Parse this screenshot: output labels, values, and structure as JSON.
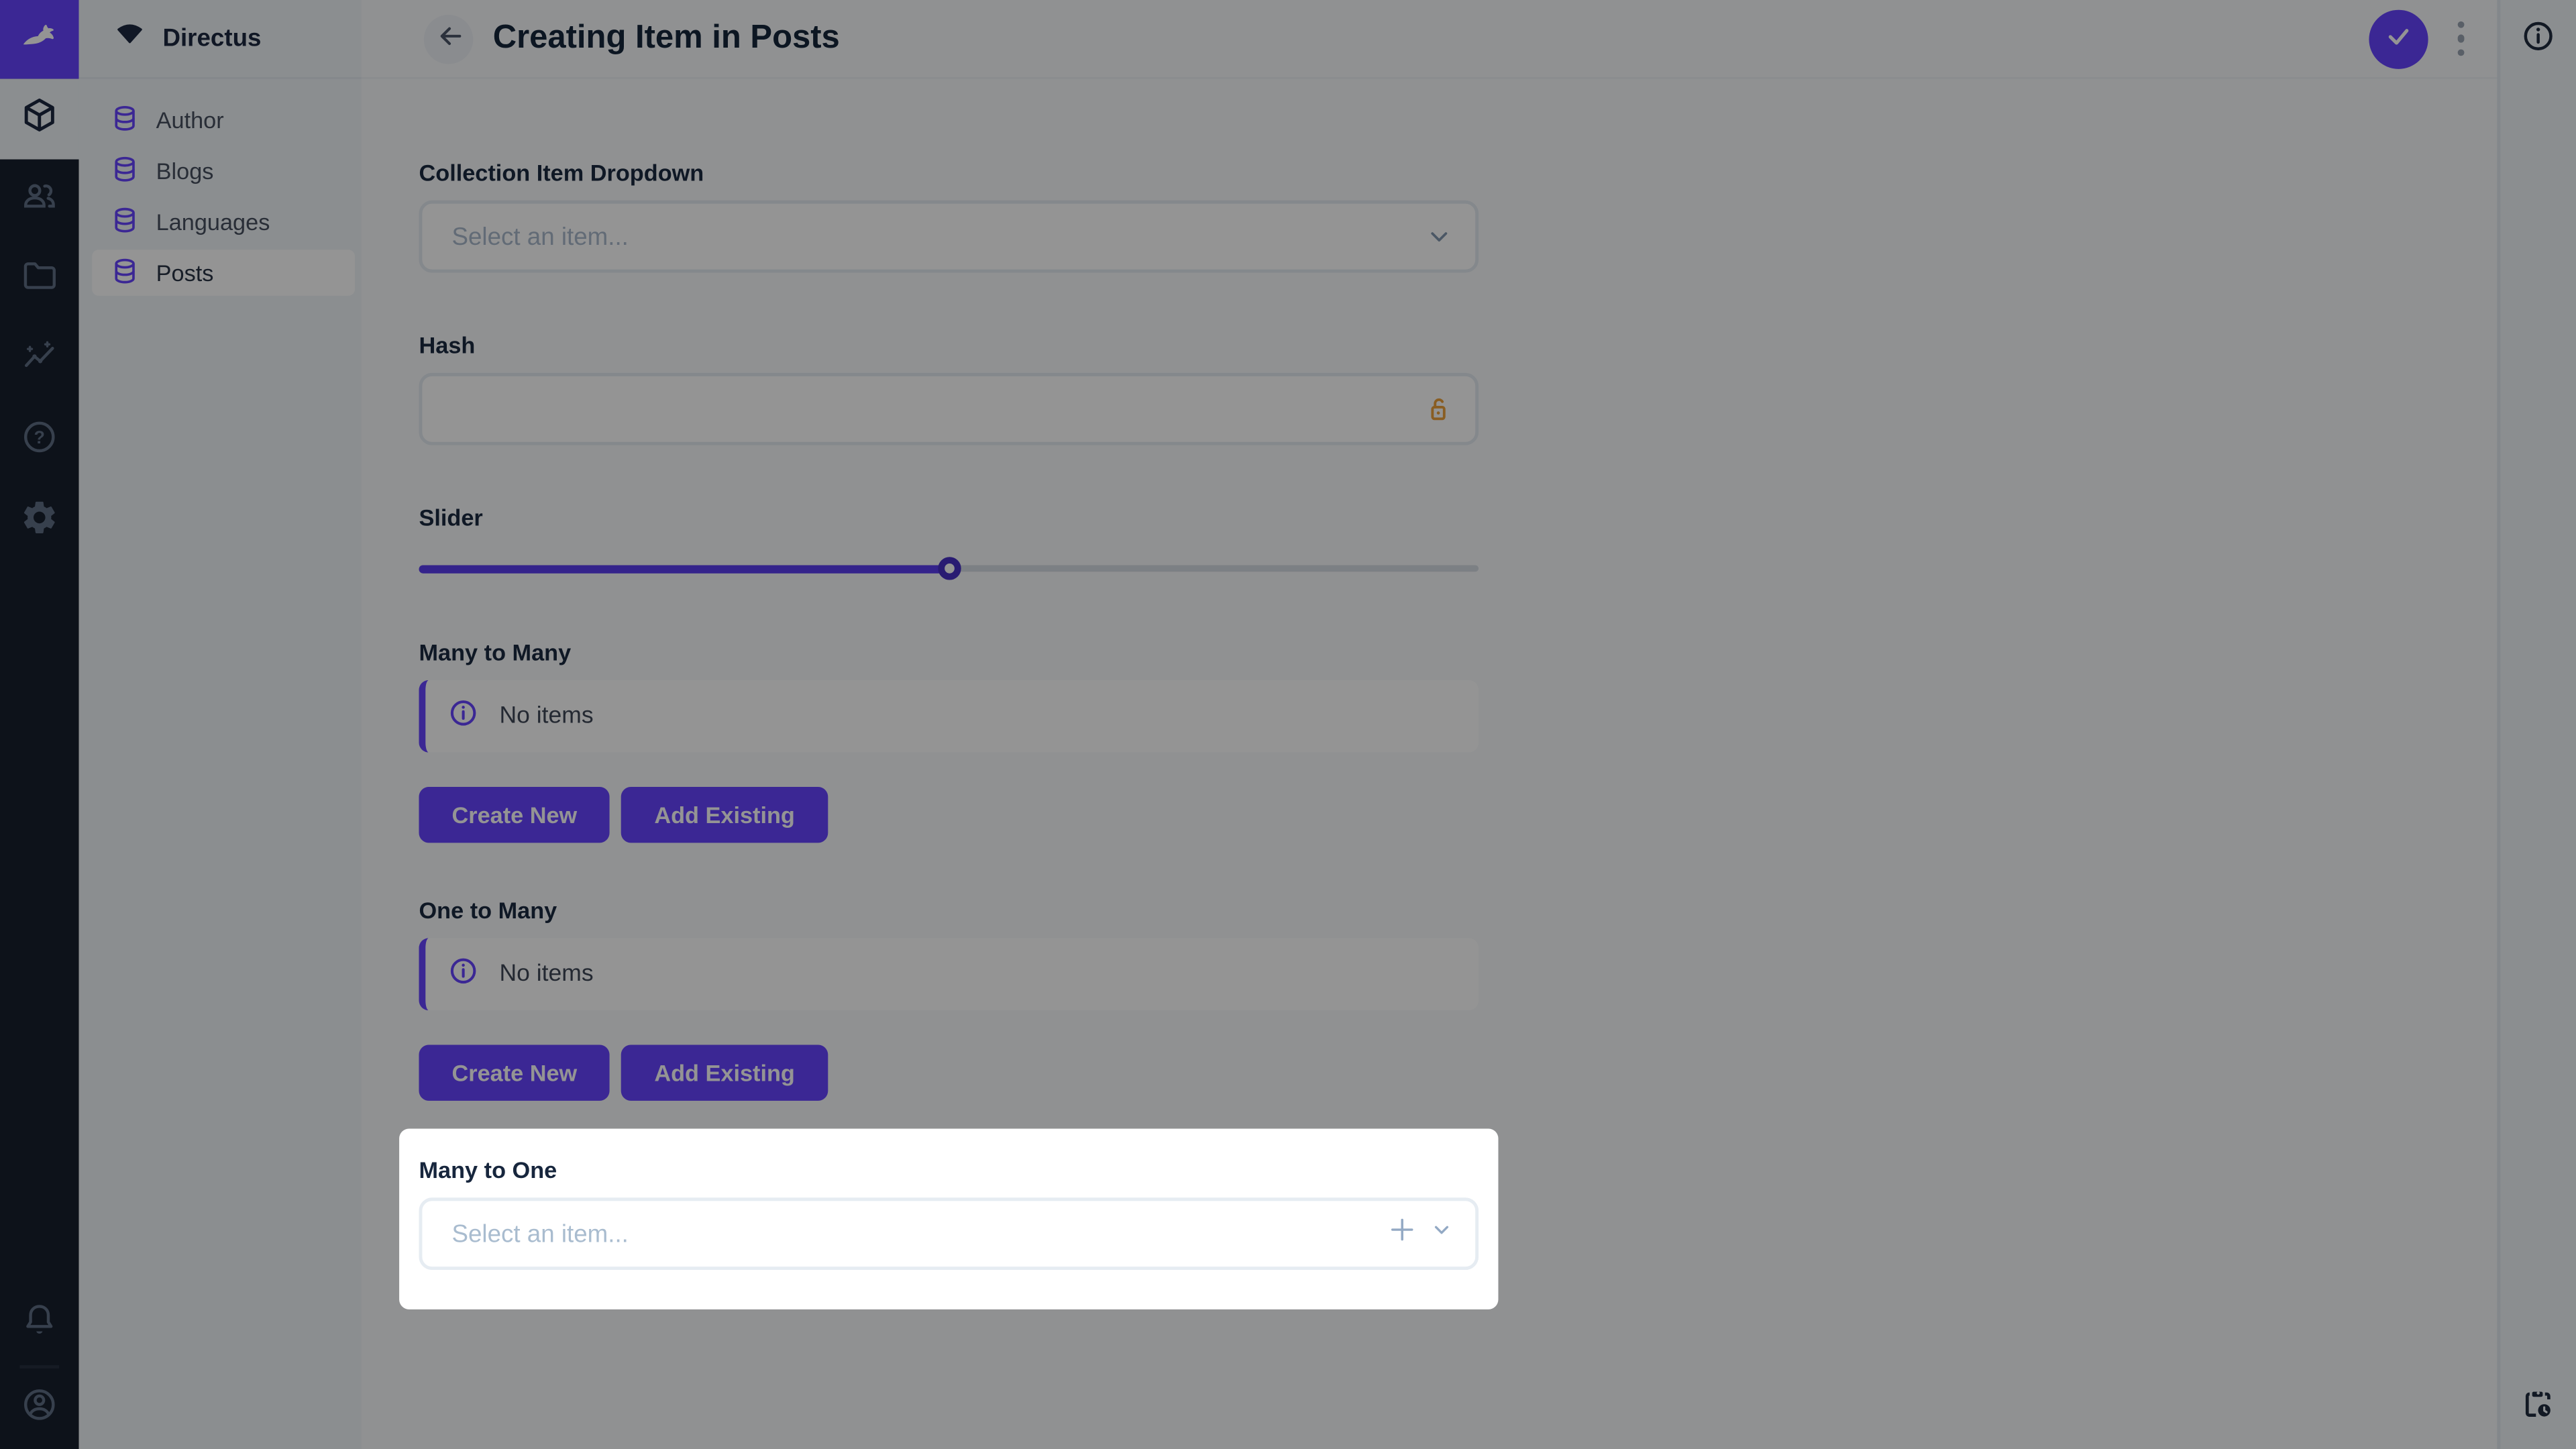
{
  "project": {
    "name": "Directus"
  },
  "nav": {
    "items": [
      {
        "label": "Author"
      },
      {
        "label": "Blogs"
      },
      {
        "label": "Languages"
      },
      {
        "label": "Posts",
        "active": true
      }
    ]
  },
  "header": {
    "title": "Creating Item in Posts"
  },
  "form": {
    "collection_dropdown": {
      "label": "Collection Item Dropdown",
      "placeholder": "Select an item..."
    },
    "hash": {
      "label": "Hash",
      "value": ""
    },
    "slider": {
      "label": "Slider",
      "percent": 50
    },
    "many_to_many": {
      "label": "Many to Many",
      "empty_text": "No items",
      "create_button": "Create New",
      "add_button": "Add Existing"
    },
    "one_to_many": {
      "label": "One to Many",
      "empty_text": "No items",
      "create_button": "Create New",
      "add_button": "Add Existing"
    },
    "many_to_one": {
      "label": "Many to One",
      "placeholder": "Select an item..."
    }
  },
  "colors": {
    "accent": "#6644ff",
    "module_bar": "#18202e",
    "nav_background": "#f0f4f9",
    "warning_lock": "#eda03c",
    "overlay": "rgba(0,0,0,0.42)"
  }
}
